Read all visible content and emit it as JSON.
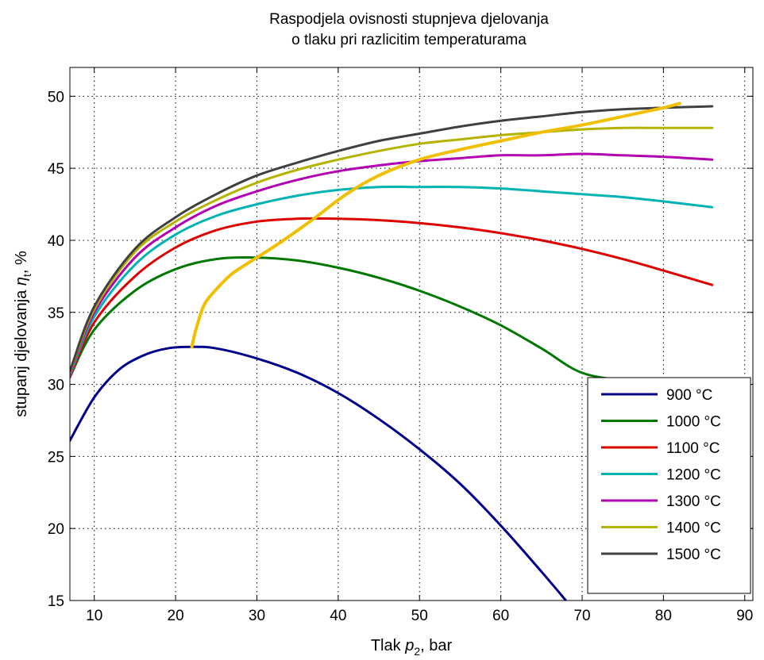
{
  "chart_data": {
    "type": "line",
    "title": [
      "Raspodjela ovisnosti stupnjeva djelovanja",
      "o tlaku pri razlicitim temperaturama"
    ],
    "xlabel": {
      "prefix": "Tlak ",
      "symbol": "p",
      "subscript": "2",
      "suffix": ", bar"
    },
    "ylabel": {
      "prefix": "stupanj djelovanja ",
      "symbol": "η",
      "subscript": "t",
      "suffix": ", %"
    },
    "xlim": [
      7,
      91
    ],
    "ylim": [
      15,
      52
    ],
    "xticks": [
      10,
      20,
      30,
      40,
      50,
      60,
      70,
      80,
      90
    ],
    "yticks": [
      15,
      20,
      25,
      30,
      35,
      40,
      45,
      50
    ],
    "grid": true,
    "legend_position": "bottom-right",
    "series": [
      {
        "name": "900 °C",
        "color": "#00008b",
        "x": [
          7,
          10,
          13,
          16,
          19,
          22,
          25,
          30,
          35,
          40,
          45,
          50,
          55,
          60,
          65,
          68
        ],
        "y": [
          26.1,
          29.1,
          31.0,
          32.0,
          32.5,
          32.6,
          32.5,
          31.8,
          30.8,
          29.4,
          27.6,
          25.5,
          23.1,
          20.2,
          17.0,
          15.0
        ]
      },
      {
        "name": "1000 °C",
        "color": "#007800",
        "x": [
          7,
          10,
          15,
          20,
          25,
          30,
          35,
          40,
          45,
          50,
          55,
          60,
          65,
          70,
          76
        ],
        "y": [
          30.5,
          33.8,
          36.5,
          38.0,
          38.7,
          38.8,
          38.6,
          38.1,
          37.4,
          36.5,
          35.4,
          34.1,
          32.5,
          30.8,
          30.2
        ]
      },
      {
        "name": "1100 °C",
        "color": "#dd0000",
        "x": [
          7,
          10,
          15,
          20,
          25,
          30,
          35,
          40,
          45,
          50,
          55,
          60,
          65,
          70,
          75,
          80,
          86
        ],
        "y": [
          30.5,
          34.3,
          37.5,
          39.5,
          40.7,
          41.3,
          41.5,
          41.5,
          41.4,
          41.2,
          40.9,
          40.5,
          40.0,
          39.4,
          38.7,
          37.9,
          36.9
        ]
      },
      {
        "name": "1200 °C",
        "color": "#00b3b3",
        "x": [
          7,
          10,
          15,
          20,
          25,
          30,
          35,
          40,
          45,
          50,
          55,
          60,
          65,
          70,
          75,
          80,
          86
        ],
        "y": [
          30.6,
          34.7,
          38.3,
          40.4,
          41.7,
          42.5,
          43.1,
          43.5,
          43.7,
          43.7,
          43.7,
          43.6,
          43.4,
          43.2,
          43.0,
          42.7,
          42.3
        ]
      },
      {
        "name": "1300 °C",
        "color": "#b300b3",
        "x": [
          7,
          10,
          15,
          20,
          25,
          30,
          35,
          40,
          45,
          50,
          55,
          60,
          65,
          70,
          75,
          80,
          86
        ],
        "y": [
          30.7,
          35.0,
          38.8,
          40.9,
          42.4,
          43.4,
          44.2,
          44.8,
          45.2,
          45.5,
          45.7,
          45.9,
          45.9,
          46.0,
          45.9,
          45.8,
          45.6
        ]
      },
      {
        "name": "1400 °C",
        "color": "#b3b300",
        "x": [
          7,
          10,
          15,
          20,
          25,
          30,
          35,
          40,
          45,
          50,
          55,
          60,
          65,
          70,
          75,
          80,
          86
        ],
        "y": [
          30.8,
          35.2,
          39.2,
          41.3,
          42.8,
          44.0,
          44.9,
          45.6,
          46.2,
          46.7,
          47.0,
          47.3,
          47.5,
          47.7,
          47.8,
          47.8,
          47.8
        ]
      },
      {
        "name": "1500 °C",
        "color": "#404040",
        "x": [
          7,
          10,
          15,
          20,
          25,
          30,
          35,
          40,
          45,
          50,
          55,
          60,
          65,
          70,
          75,
          80,
          86
        ],
        "y": [
          30.9,
          35.4,
          39.4,
          41.6,
          43.2,
          44.5,
          45.4,
          46.2,
          46.9,
          47.4,
          47.9,
          48.3,
          48.6,
          48.9,
          49.1,
          49.2,
          49.3
        ]
      }
    ],
    "envelope": {
      "color": "#f0c000",
      "x": [
        22,
        22.5,
        23.5,
        25,
        27,
        30,
        33,
        37,
        41,
        45,
        50,
        55,
        60,
        65,
        70,
        75,
        80,
        82
      ],
      "y": [
        32.6,
        33.8,
        35.5,
        36.6,
        37.7,
        38.8,
        39.9,
        41.5,
        43.2,
        44.5,
        45.6,
        46.3,
        46.9,
        47.5,
        48.0,
        48.6,
        49.2,
        49.5
      ]
    }
  }
}
